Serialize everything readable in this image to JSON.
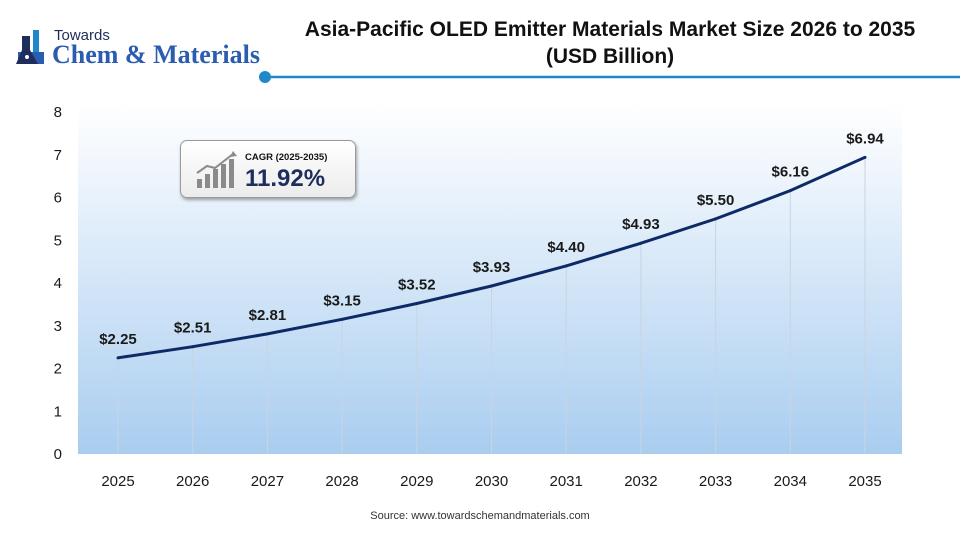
{
  "brand": {
    "logo_small": "Towards",
    "logo_big": "Chem & Materials",
    "accent_color": "#0e2a66",
    "highlight_color": "#1e88c8"
  },
  "header": {
    "title_line1": "Asia-Pacific OLED Emitter Materials Market Size 2026 to 2035",
    "title_line2": "(USD Billion)"
  },
  "cagr": {
    "label": "CAGR (2025-2035)",
    "value": "11.92%"
  },
  "source": "Source: www.towardschemandmaterials.com",
  "chart_data": {
    "type": "line",
    "title": "Asia-Pacific OLED Emitter Materials Market Size 2026 to 2035 (USD Billion)",
    "xlabel": "",
    "ylabel": "",
    "categories": [
      "2025",
      "2026",
      "2027",
      "2028",
      "2029",
      "2030",
      "2031",
      "2032",
      "2033",
      "2034",
      "2035"
    ],
    "values": [
      2.25,
      2.51,
      2.81,
      3.15,
      3.52,
      3.93,
      4.4,
      4.93,
      5.5,
      6.16,
      6.94
    ],
    "data_labels": [
      "$2.25",
      "$2.51",
      "$2.81",
      "$3.15",
      "$3.52",
      "$3.93",
      "$4.40",
      "$4.93",
      "$5.50",
      "$6.16",
      "$6.94"
    ],
    "y_ticks": [
      0,
      1,
      2,
      3,
      4,
      5,
      6,
      7,
      8
    ],
    "ylim": [
      0,
      8
    ],
    "grid": "vertical",
    "area_fill": "gradient light blue",
    "line_color": "#0e2a66"
  }
}
